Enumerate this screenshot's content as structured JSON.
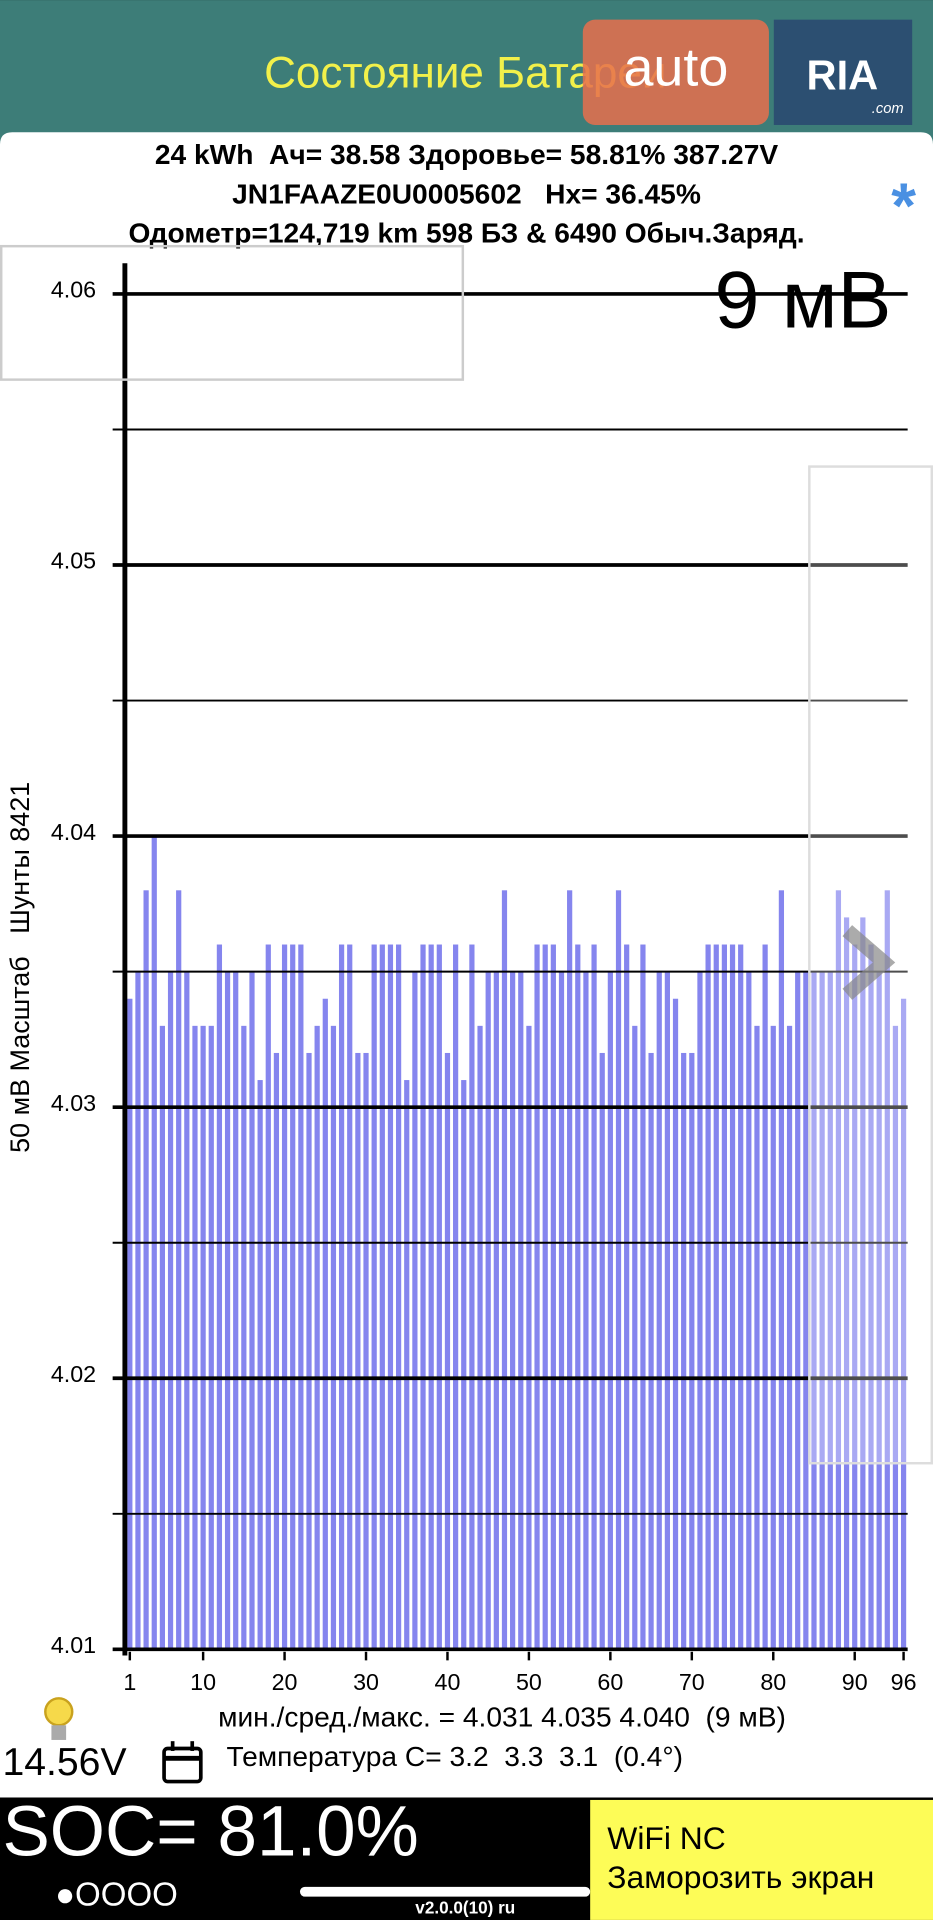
{
  "header": {
    "title": "Состояние Батареи",
    "watermark": {
      "brand": "auto",
      "logo": "RIA",
      "domain": ".com"
    }
  },
  "info": {
    "lines": [
      "24 kWh  Ач= 38.58 Здоровье= 58.81% 387.27V",
      "JN1FAAZE0U0005602   Hx= 36.45%",
      "Одометр=124,719 km 598 БЗ & 6490 Обыч.Заряд."
    ],
    "marker": "*"
  },
  "chart_data": {
    "type": "bar",
    "annotation": "9 мВ",
    "y_label": "50 мВ Масштаб   Шунты 8421",
    "x": [
      1,
      2,
      3,
      4,
      5,
      6,
      7,
      8,
      9,
      10,
      11,
      12,
      13,
      14,
      15,
      16,
      17,
      18,
      19,
      20,
      21,
      22,
      23,
      24,
      25,
      26,
      27,
      28,
      29,
      30,
      31,
      32,
      33,
      34,
      35,
      36,
      37,
      38,
      39,
      40,
      41,
      42,
      43,
      44,
      45,
      46,
      47,
      48,
      49,
      50,
      51,
      52,
      53,
      54,
      55,
      56,
      57,
      58,
      59,
      60,
      61,
      62,
      63,
      64,
      65,
      66,
      67,
      68,
      69,
      70,
      71,
      72,
      73,
      74,
      75,
      76,
      77,
      78,
      79,
      80,
      81,
      82,
      83,
      84,
      85,
      86,
      87,
      88,
      89,
      90,
      91,
      92,
      93,
      94,
      95,
      96
    ],
    "values": [
      4.034,
      4.035,
      4.038,
      4.04,
      4.033,
      4.035,
      4.038,
      4.035,
      4.033,
      4.033,
      4.033,
      4.036,
      4.035,
      4.035,
      4.033,
      4.035,
      4.031,
      4.036,
      4.032,
      4.036,
      4.036,
      4.036,
      4.032,
      4.033,
      4.034,
      4.033,
      4.036,
      4.036,
      4.032,
      4.032,
      4.036,
      4.036,
      4.036,
      4.036,
      4.031,
      4.035,
      4.036,
      4.036,
      4.036,
      4.032,
      4.036,
      4.031,
      4.036,
      4.033,
      4.035,
      4.035,
      4.038,
      4.035,
      4.035,
      4.033,
      4.036,
      4.036,
      4.036,
      4.035,
      4.038,
      4.036,
      4.035,
      4.036,
      4.032,
      4.035,
      4.038,
      4.036,
      4.033,
      4.036,
      4.032,
      4.035,
      4.035,
      4.034,
      4.032,
      4.032,
      4.035,
      4.036,
      4.036,
      4.036,
      4.036,
      4.036,
      4.035,
      4.033,
      4.036,
      4.033,
      4.038,
      4.033,
      4.035,
      4.035,
      4.035,
      4.035,
      4.035,
      4.038,
      4.037,
      4.036,
      4.037,
      4.036,
      4.035,
      4.038,
      4.033,
      4.034
    ],
    "color": "#8585ee",
    "xlim": [
      0.5,
      96.5
    ],
    "ylim": [
      4.01,
      4.06
    ],
    "xticks": [
      1,
      10,
      20,
      30,
      40,
      50,
      60,
      70,
      80,
      90,
      96
    ],
    "yticks": [
      4.01,
      4.02,
      4.03,
      4.04,
      4.05,
      4.06
    ],
    "minor_yticks": [
      4.015,
      4.025,
      4.035,
      4.045,
      4.055
    ],
    "grid": true
  },
  "footer": {
    "stats": "мин./сред./макс. = 4.031 4.035 4.040  (9 мВ)",
    "voltage": "14.56V",
    "temperature": "Температура C= 3.2  3.3  3.1  (0.4°)",
    "soc": "SOC= 81.0%",
    "dots": "●OOOO",
    "version": "v2.0.0(10) ru",
    "buttons": [
      "WiFi NC",
      "Заморозить экран"
    ]
  }
}
